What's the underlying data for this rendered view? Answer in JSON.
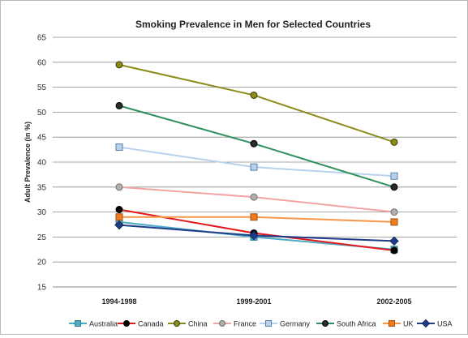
{
  "chart_data": {
    "type": "line",
    "title": "Smoking Prevalence in Men for Selected Countries",
    "xlabel": "",
    "ylabel": "Adult Prevalence (in %)",
    "categories": [
      "1994-1998",
      "1999-2001",
      "2002-2005"
    ],
    "ylim": [
      15,
      65
    ],
    "yticks": [
      "15",
      "20",
      "25",
      "30",
      "35",
      "40",
      "45",
      "50",
      "55",
      "60",
      "65"
    ],
    "grid": true,
    "legend_position": "bottom",
    "series": [
      {
        "name": "Australia",
        "values": [
          28,
          25,
          22.5
        ],
        "line_color": "#4bacc6",
        "marker": "square",
        "marker_fill": "#4bacc6",
        "marker_stroke": "#2f7f95"
      },
      {
        "name": "Canada",
        "values": [
          30.5,
          25.8,
          22.3
        ],
        "line_color": "#e0191c",
        "marker": "circle",
        "marker_fill": "#000000",
        "marker_stroke": "#000000"
      },
      {
        "name": "China",
        "values": [
          59.5,
          53.4,
          44
        ],
        "line_color": "#8c8c1a",
        "marker": "circle",
        "marker_fill": "#8c8c1a",
        "marker_stroke": "#3a3a08"
      },
      {
        "name": "France",
        "values": [
          35,
          33,
          30
        ],
        "line_color": "#f4a3a3",
        "marker": "circle",
        "marker_fill": "#b0b0b0",
        "marker_stroke": "#6e6e6e"
      },
      {
        "name": "Germany",
        "values": [
          43,
          39,
          37.2
        ],
        "line_color": "#b8d2ec",
        "marker": "square",
        "marker_fill": "#b8d2ec",
        "marker_stroke": "#5a7fb0"
      },
      {
        "name": "South Africa",
        "values": [
          51.3,
          43.7,
          35
        ],
        "line_color": "#31905f",
        "marker": "circle",
        "marker_fill": "#2b2b2b",
        "marker_stroke": "#000000"
      },
      {
        "name": "UK",
        "values": [
          29,
          29,
          28
        ],
        "line_color": "#f79646",
        "marker": "square",
        "marker_fill": "#f07c1c",
        "marker_stroke": "#a3520f"
      },
      {
        "name": "USA",
        "values": [
          27.4,
          25.3,
          24.2
        ],
        "line_color": "#1f3c88",
        "marker": "diamond",
        "marker_fill": "#1f3c88",
        "marker_stroke": "#132659"
      }
    ]
  }
}
